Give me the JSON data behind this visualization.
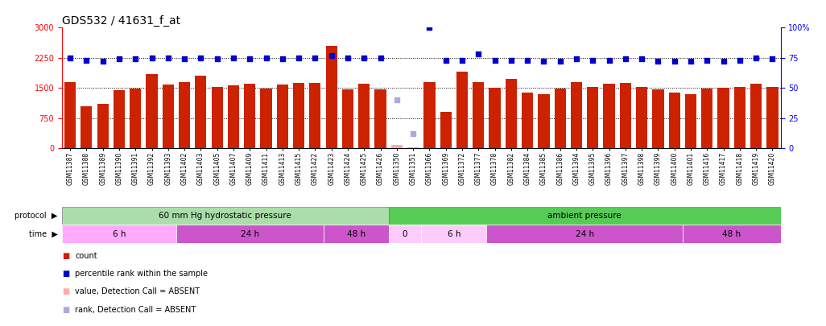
{
  "title": "GDS532 / 41631_f_at",
  "samples": [
    "GSM11387",
    "GSM11388",
    "GSM11389",
    "GSM11390",
    "GSM11391",
    "GSM11392",
    "GSM11393",
    "GSM11402",
    "GSM11403",
    "GSM11405",
    "GSM11407",
    "GSM11409",
    "GSM11411",
    "GSM11413",
    "GSM11415",
    "GSM11422",
    "GSM11423",
    "GSM11424",
    "GSM11425",
    "GSM11426",
    "GSM11350",
    "GSM11351",
    "GSM11366",
    "GSM11369",
    "GSM11372",
    "GSM11377",
    "GSM11378",
    "GSM11382",
    "GSM11384",
    "GSM11385",
    "GSM11386",
    "GSM11394",
    "GSM11395",
    "GSM11396",
    "GSM11397",
    "GSM11398",
    "GSM11399",
    "GSM11400",
    "GSM11401",
    "GSM11416",
    "GSM11417",
    "GSM11418",
    "GSM11419",
    "GSM11420"
  ],
  "counts": [
    1650,
    1050,
    1100,
    1450,
    1480,
    1850,
    1580,
    1650,
    1800,
    1530,
    1560,
    1600,
    1480,
    1580,
    1620,
    1620,
    2550,
    1460,
    1600,
    1470,
    80,
    30,
    1650,
    900,
    1900,
    1650,
    1500,
    1720,
    1380,
    1350,
    1490,
    1640,
    1520,
    1600,
    1620,
    1530,
    1470,
    1380,
    1340,
    1480,
    1500,
    1530,
    1600,
    1520
  ],
  "percentile_ranks": [
    75,
    73,
    72,
    74,
    74,
    75,
    75,
    74,
    75,
    74,
    75,
    74,
    75,
    74,
    75,
    75,
    77,
    75,
    75,
    75,
    40,
    12,
    100,
    73,
    73,
    78,
    73,
    73,
    73,
    72,
    72,
    74,
    73,
    73,
    74,
    74,
    72,
    72,
    72,
    73,
    72,
    73,
    75,
    74
  ],
  "absent_indices": [
    20,
    21
  ],
  "protocol_groups": [
    {
      "label": "60 mm Hg hydrostatic pressure",
      "start": 0,
      "end": 19,
      "color": "#AADDAA"
    },
    {
      "label": "ambient pressure",
      "start": 20,
      "end": 43,
      "color": "#55CC55"
    }
  ],
  "time_groups": [
    {
      "label": "6 h",
      "start": 0,
      "end": 6,
      "color": "#FFAAFF"
    },
    {
      "label": "24 h",
      "start": 7,
      "end": 15,
      "color": "#CC55CC"
    },
    {
      "label": "48 h",
      "start": 16,
      "end": 19,
      "color": "#CC55CC"
    },
    {
      "label": "0",
      "start": 20,
      "end": 21,
      "color": "#FFCCFF"
    },
    {
      "label": "6 h",
      "start": 22,
      "end": 25,
      "color": "#FFCCFF"
    },
    {
      "label": "24 h",
      "start": 26,
      "end": 37,
      "color": "#CC55CC"
    },
    {
      "label": "48 h",
      "start": 38,
      "end": 43,
      "color": "#CC55CC"
    }
  ],
  "ylim_left": [
    0,
    3000
  ],
  "ylim_right": [
    0,
    100
  ],
  "yticks_left": [
    0,
    750,
    1500,
    2250,
    3000
  ],
  "yticks_right": [
    0,
    25,
    50,
    75,
    100
  ],
  "ytick_labels_right": [
    "0",
    "25",
    "50",
    "75",
    "100%"
  ],
  "bar_color": "#CC2200",
  "dot_color": "#0000CC",
  "absent_bar_color": "#FFAAAA",
  "absent_dot_color": "#AAAADD",
  "bg_color": "#FFFFFF",
  "title_fontsize": 10,
  "protocol_label_color": "#555555",
  "grid_lines": [
    750,
    1500,
    2250
  ]
}
